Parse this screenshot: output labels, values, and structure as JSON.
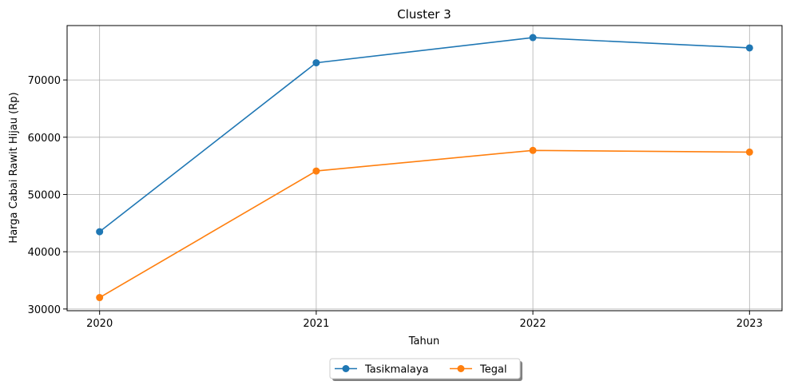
{
  "chart_data": {
    "type": "line",
    "title": "Cluster 3",
    "xlabel": "Tahun",
    "ylabel": "Harga Cabai Rawit Hijau (Rp)",
    "categories": [
      "2020",
      "2021",
      "2022",
      "2023"
    ],
    "x": [
      2020,
      2021,
      2022,
      2023
    ],
    "xlim": [
      2019.85,
      2023.15
    ],
    "ylim": [
      29700,
      79500
    ],
    "yticks": [
      30000,
      40000,
      50000,
      60000,
      70000
    ],
    "ytick_labels": [
      "30000",
      "40000",
      "50000",
      "60000",
      "70000"
    ],
    "grid": true,
    "legend_placement": "bottom-center",
    "series": [
      {
        "name": "Tasikmalaya",
        "color": "#1f77b4",
        "marker": "circle",
        "values": [
          43500,
          73000,
          77400,
          75600
        ]
      },
      {
        "name": "Tegal",
        "color": "#ff7f0e",
        "marker": "circle",
        "values": [
          32000,
          54100,
          57700,
          57400
        ]
      }
    ]
  }
}
